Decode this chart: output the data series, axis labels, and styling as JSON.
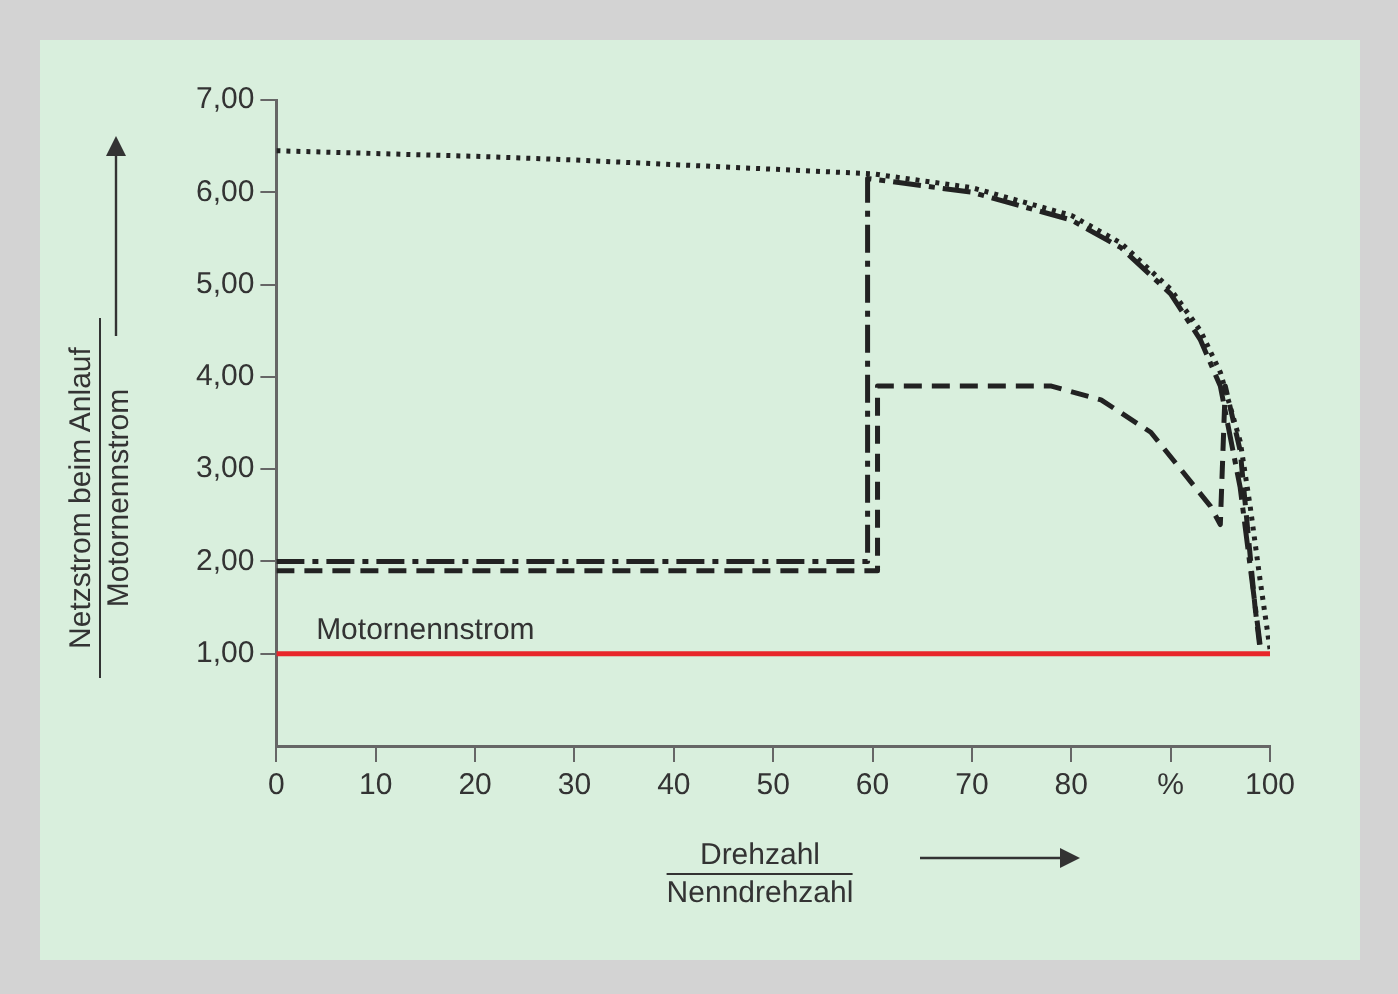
{
  "chart_data": {
    "type": "line",
    "xlabel": "Drehzahl\nNenndrehzahl",
    "ylabel": "Netzstrom beim Anlauf\nMotornennstrom",
    "xlim": [
      0,
      100
    ],
    "xticks": [
      0,
      10,
      20,
      30,
      40,
      50,
      60,
      70,
      80,
      {
        "value": 90,
        "label": "%"
      },
      100
    ],
    "ylim": [
      0,
      7
    ],
    "yticks": [
      {
        "value": 1,
        "label": "1,00"
      },
      {
        "value": 2,
        "label": "2,00"
      },
      {
        "value": 3,
        "label": "3,00"
      },
      {
        "value": 4,
        "label": "4,00"
      },
      {
        "value": 5,
        "label": "5,00"
      },
      {
        "value": 6,
        "label": "6,00"
      },
      {
        "value": 7,
        "label": "7,00"
      }
    ],
    "grid": false,
    "legend": false,
    "marker": "none",
    "annotations": [
      {
        "text": "Motornennstrom",
        "x": 4,
        "y": 1
      }
    ],
    "series": [
      {
        "color": "#222222",
        "line_style": "dotted",
        "x": [
          0,
          10,
          20,
          30,
          40,
          50,
          60,
          70,
          80,
          85,
          90,
          93,
          95,
          97,
          98,
          99,
          100
        ],
        "values": [
          6.45,
          6.42,
          6.39,
          6.35,
          6.3,
          6.25,
          6.2,
          6.05,
          5.75,
          5.45,
          4.95,
          4.5,
          4.05,
          3.3,
          2.6,
          1.8,
          1.05
        ]
      },
      {
        "color": "#222222",
        "line_style": "dashdot",
        "x": [
          0,
          59.5,
          59.5,
          70,
          80,
          85,
          90,
          93,
          95,
          97,
          99
        ],
        "values": [
          2.0,
          2.0,
          6.15,
          6.0,
          5.7,
          5.4,
          4.9,
          4.4,
          3.9,
          2.8,
          1.1
        ]
      },
      {
        "color": "#222222",
        "line_style": "dashed",
        "x": [
          0,
          60.5,
          60.5,
          78,
          83,
          88,
          91,
          94,
          95,
          95.5,
          97,
          98.5,
          99
        ],
        "values": [
          1.9,
          1.9,
          3.9,
          3.9,
          3.75,
          3.4,
          3.0,
          2.6,
          2.4,
          3.9,
          3.2,
          1.5,
          1.05
        ]
      },
      {
        "color": "#e8262a",
        "line_style": "solid",
        "x": [
          0,
          100
        ],
        "values": [
          1,
          1
        ]
      }
    ]
  }
}
